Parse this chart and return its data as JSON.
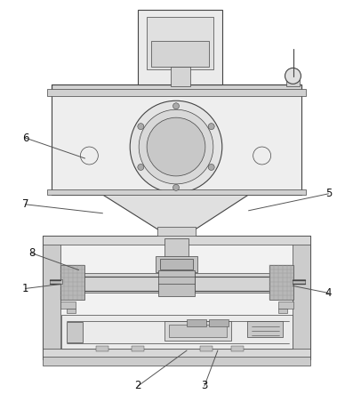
{
  "figure_width": 3.97,
  "figure_height": 4.43,
  "dpi": 100,
  "bg_color": "#ffffff",
  "lc": "#444444",
  "lc2": "#666666",
  "c_light": "#f0f0f0",
  "c_mid": "#d8d8d8",
  "c_dark": "#b0b0b0",
  "c_vdark": "#888888",
  "c_hatch": "#999999"
}
